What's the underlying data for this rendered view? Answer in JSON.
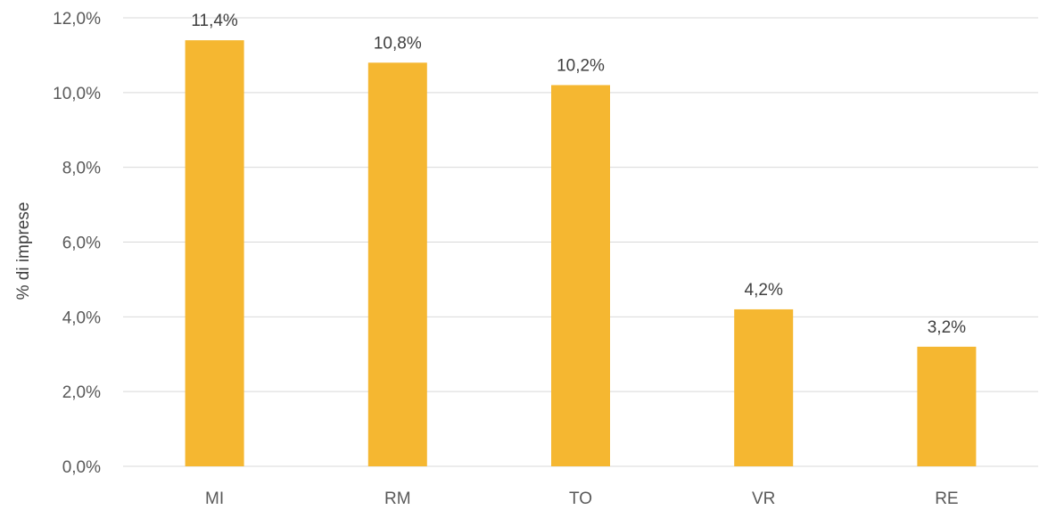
{
  "chart_data": {
    "type": "bar",
    "categories": [
      "MI",
      "RM",
      "TO",
      "VR",
      "RE"
    ],
    "values": [
      11.4,
      10.8,
      10.2,
      4.2,
      3.2
    ],
    "data_labels": [
      "11,4%",
      "10,8%",
      "10,2%",
      "4,2%",
      "3,2%"
    ],
    "title": "",
    "xlabel": "",
    "ylabel": "% di imprese",
    "ylim": [
      0,
      12
    ],
    "yticks": [
      0,
      2,
      4,
      6,
      8,
      10,
      12
    ],
    "ytick_labels": [
      "0,0%",
      "2,0%",
      "4,0%",
      "6,0%",
      "8,0%",
      "10,0%",
      "12,0%"
    ],
    "grid": true,
    "bar_color": "#F5B731",
    "grid_color": "#D9D9D9"
  }
}
